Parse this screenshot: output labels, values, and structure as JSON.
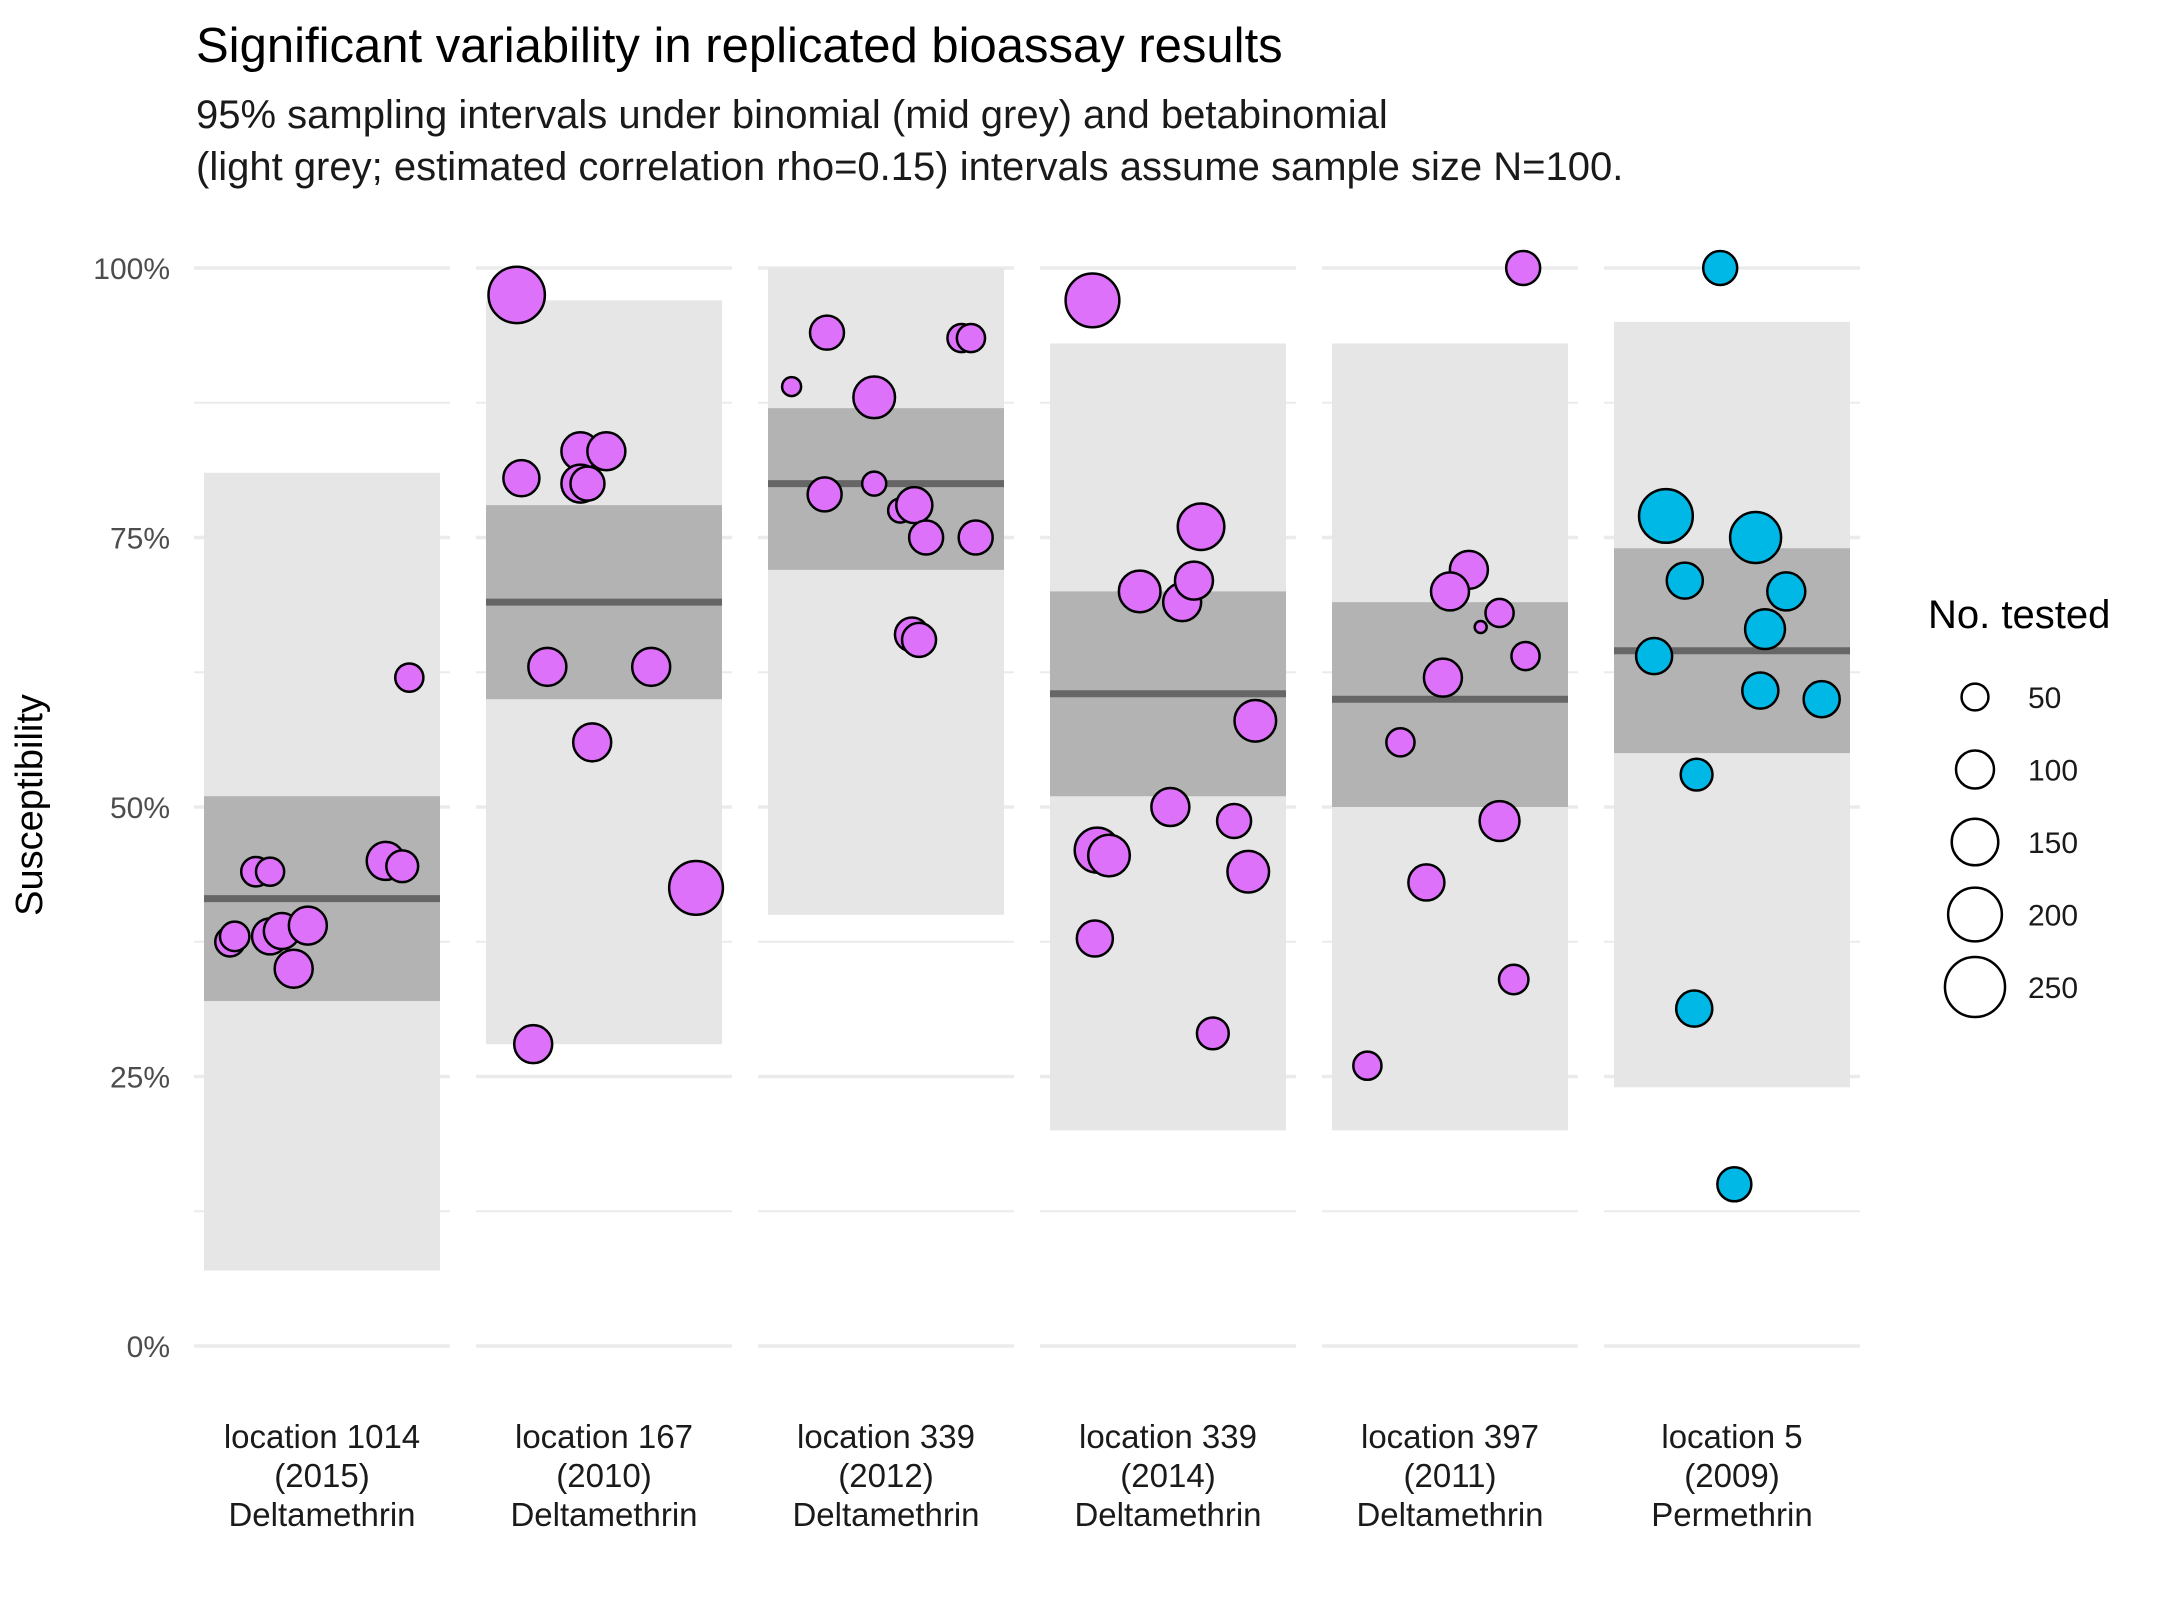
{
  "chart_data": {
    "type": "scatter",
    "title": "Significant variability in replicated bioassay results",
    "subtitle_lines": [
      "95% sampling intervals under binomial (mid grey) and betabinomial",
      "(light grey; estimated correlation rho=0.15) intervals assume sample size N=100."
    ],
    "ylabel": "Susceptibility",
    "ylim": [
      0,
      1
    ],
    "yticks": [
      0,
      0.25,
      0.5,
      0.75,
      1.0
    ],
    "ytick_labels": [
      "0%",
      "25%",
      "50%",
      "75%",
      "100%"
    ],
    "grid": true,
    "legend": {
      "title": "No. tested",
      "placement": "right",
      "sizes": [
        50,
        100,
        150,
        200,
        250
      ],
      "labels": [
        "50",
        "100",
        "150",
        "200",
        "250"
      ]
    },
    "colors": {
      "deltamethrin": "#dd71fa",
      "permethrin": "#00b8e5",
      "binomial_band": "#b3b3b3",
      "betabinomial_band": "#e6e6e6",
      "mean_line": "#666666"
    },
    "panels": [
      {
        "label_lines": [
          "location 1014",
          "(2015)",
          "Deltamethrin"
        ],
        "insecticide": "Deltamethrin",
        "mean": 0.415,
        "binomial": [
          0.32,
          0.51
        ],
        "betabinomial": [
          0.07,
          0.81
        ],
        "points": [
          {
            "x": 0.11,
            "y": 0.375,
            "n": 60
          },
          {
            "x": 0.13,
            "y": 0.38,
            "n": 60
          },
          {
            "x": 0.22,
            "y": 0.44,
            "n": 60
          },
          {
            "x": 0.28,
            "y": 0.44,
            "n": 55
          },
          {
            "x": 0.28,
            "y": 0.38,
            "n": 90
          },
          {
            "x": 0.33,
            "y": 0.385,
            "n": 90
          },
          {
            "x": 0.38,
            "y": 0.35,
            "n": 100
          },
          {
            "x": 0.44,
            "y": 0.39,
            "n": 100
          },
          {
            "x": 0.77,
            "y": 0.45,
            "n": 100
          },
          {
            "x": 0.84,
            "y": 0.445,
            "n": 70
          },
          {
            "x": 0.87,
            "y": 0.62,
            "n": 55
          }
        ]
      },
      {
        "label_lines": [
          "location 167",
          "(2010)",
          "Deltamethrin"
        ],
        "insecticide": "Deltamethrin",
        "mean": 0.69,
        "binomial": [
          0.6,
          0.78
        ],
        "betabinomial": [
          0.28,
          0.97
        ],
        "points": [
          {
            "x": 0.13,
            "y": 0.975,
            "n": 220
          },
          {
            "x": 0.15,
            "y": 0.805,
            "n": 90
          },
          {
            "x": 0.2,
            "y": 0.28,
            "n": 100
          },
          {
            "x": 0.26,
            "y": 0.63,
            "n": 100
          },
          {
            "x": 0.4,
            "y": 0.83,
            "n": 100
          },
          {
            "x": 0.4,
            "y": 0.8,
            "n": 100
          },
          {
            "x": 0.43,
            "y": 0.8,
            "n": 80
          },
          {
            "x": 0.51,
            "y": 0.83,
            "n": 100
          },
          {
            "x": 0.45,
            "y": 0.56,
            "n": 100
          },
          {
            "x": 0.7,
            "y": 0.63,
            "n": 100
          },
          {
            "x": 0.89,
            "y": 0.425,
            "n": 200
          }
        ]
      },
      {
        "label_lines": [
          "location 339",
          "(2012)",
          "Deltamethrin"
        ],
        "insecticide": "Deltamethrin",
        "mean": 0.8,
        "binomial": [
          0.72,
          0.87
        ],
        "betabinomial": [
          0.4,
          1.0
        ],
        "points": [
          {
            "x": 0.1,
            "y": 0.89,
            "n": 25
          },
          {
            "x": 0.25,
            "y": 0.94,
            "n": 80
          },
          {
            "x": 0.24,
            "y": 0.79,
            "n": 80
          },
          {
            "x": 0.45,
            "y": 0.88,
            "n": 120
          },
          {
            "x": 0.45,
            "y": 0.8,
            "n": 40
          },
          {
            "x": 0.56,
            "y": 0.775,
            "n": 40
          },
          {
            "x": 0.62,
            "y": 0.78,
            "n": 90
          },
          {
            "x": 0.67,
            "y": 0.75,
            "n": 80
          },
          {
            "x": 0.82,
            "y": 0.935,
            "n": 55
          },
          {
            "x": 0.86,
            "y": 0.935,
            "n": 55
          },
          {
            "x": 0.61,
            "y": 0.66,
            "n": 80
          },
          {
            "x": 0.64,
            "y": 0.655,
            "n": 80
          },
          {
            "x": 0.88,
            "y": 0.75,
            "n": 80
          }
        ]
      },
      {
        "label_lines": [
          "location 339",
          "(2014)",
          "Deltamethrin"
        ],
        "insecticide": "Deltamethrin",
        "mean": 0.605,
        "binomial": [
          0.51,
          0.7
        ],
        "betabinomial": [
          0.2,
          0.93
        ],
        "points": [
          {
            "x": 0.18,
            "y": 0.97,
            "n": 200
          },
          {
            "x": 0.38,
            "y": 0.7,
            "n": 120
          },
          {
            "x": 0.56,
            "y": 0.69,
            "n": 100
          },
          {
            "x": 0.61,
            "y": 0.71,
            "n": 100
          },
          {
            "x": 0.64,
            "y": 0.76,
            "n": 150
          },
          {
            "x": 0.87,
            "y": 0.58,
            "n": 120
          },
          {
            "x": 0.51,
            "y": 0.5,
            "n": 100
          },
          {
            "x": 0.2,
            "y": 0.46,
            "n": 140
          },
          {
            "x": 0.25,
            "y": 0.455,
            "n": 120
          },
          {
            "x": 0.78,
            "y": 0.487,
            "n": 80
          },
          {
            "x": 0.84,
            "y": 0.44,
            "n": 120
          },
          {
            "x": 0.19,
            "y": 0.378,
            "n": 90
          },
          {
            "x": 0.69,
            "y": 0.29,
            "n": 70
          }
        ]
      },
      {
        "label_lines": [
          "location 397",
          "(2011)",
          "Deltamethrin"
        ],
        "insecticide": "Deltamethrin",
        "mean": 0.6,
        "binomial": [
          0.5,
          0.69
        ],
        "betabinomial": [
          0.2,
          0.93
        ],
        "points": [
          {
            "x": 0.81,
            "y": 1.0,
            "n": 80
          },
          {
            "x": 0.58,
            "y": 0.72,
            "n": 100
          },
          {
            "x": 0.5,
            "y": 0.7,
            "n": 100
          },
          {
            "x": 0.71,
            "y": 0.68,
            "n": 55
          },
          {
            "x": 0.63,
            "y": 0.667,
            "n": 10
          },
          {
            "x": 0.82,
            "y": 0.64,
            "n": 55
          },
          {
            "x": 0.47,
            "y": 0.62,
            "n": 100
          },
          {
            "x": 0.29,
            "y": 0.56,
            "n": 55
          },
          {
            "x": 0.71,
            "y": 0.487,
            "n": 110
          },
          {
            "x": 0.4,
            "y": 0.43,
            "n": 90
          },
          {
            "x": 0.77,
            "y": 0.34,
            "n": 60
          },
          {
            "x": 0.15,
            "y": 0.26,
            "n": 55
          }
        ]
      },
      {
        "label_lines": [
          "location 5",
          "(2009)",
          "Permethrin"
        ],
        "insecticide": "Permethrin",
        "mean": 0.645,
        "binomial": [
          0.55,
          0.74
        ],
        "betabinomial": [
          0.24,
          0.95
        ],
        "points": [
          {
            "x": 0.45,
            "y": 1.0,
            "n": 80
          },
          {
            "x": 0.22,
            "y": 0.77,
            "n": 200
          },
          {
            "x": 0.6,
            "y": 0.75,
            "n": 180
          },
          {
            "x": 0.3,
            "y": 0.71,
            "n": 90
          },
          {
            "x": 0.73,
            "y": 0.7,
            "n": 100
          },
          {
            "x": 0.64,
            "y": 0.665,
            "n": 110
          },
          {
            "x": 0.17,
            "y": 0.64,
            "n": 90
          },
          {
            "x": 0.62,
            "y": 0.608,
            "n": 90
          },
          {
            "x": 0.88,
            "y": 0.6,
            "n": 90
          },
          {
            "x": 0.35,
            "y": 0.53,
            "n": 70
          },
          {
            "x": 0.34,
            "y": 0.313,
            "n": 90
          },
          {
            "x": 0.51,
            "y": 0.15,
            "n": 80
          }
        ]
      }
    ]
  }
}
